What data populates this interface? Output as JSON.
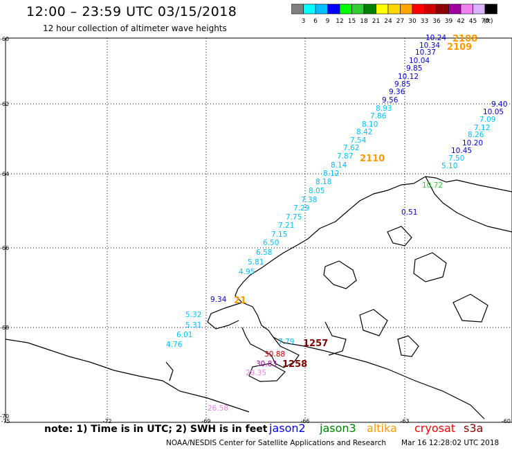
{
  "header": {
    "title": "12:00 – 23:59 UTC 03/15/2018",
    "subtitle": "12 hour collection of altimeter wave heights"
  },
  "colorbar": {
    "unit": "(ft)",
    "bins": [
      {
        "label": "3",
        "color": "#808080"
      },
      {
        "label": "6",
        "color": "#00ffff"
      },
      {
        "label": "9",
        "color": "#00bfff"
      },
      {
        "label": "12",
        "color": "#0000ff"
      },
      {
        "label": "15",
        "color": "#00ff00"
      },
      {
        "label": "18",
        "color": "#32cd32"
      },
      {
        "label": "21",
        "color": "#008000"
      },
      {
        "label": "24",
        "color": "#ffff00"
      },
      {
        "label": "27",
        "color": "#ffd700"
      },
      {
        "label": "30",
        "color": "#ffa500"
      },
      {
        "label": "33",
        "color": "#ff0000"
      },
      {
        "label": "36",
        "color": "#cc0000"
      },
      {
        "label": "39",
        "color": "#8b0000"
      },
      {
        "label": "42",
        "color": "#a000a0"
      },
      {
        "label": "45",
        "color": "#ee82ee"
      },
      {
        "label": "70",
        "color": "#d8b4fe"
      },
      {
        "label": "",
        "color": "#000000"
      }
    ]
  },
  "map": {
    "lat_labels": [
      "-60",
      "-62",
      "-64",
      "-66",
      "-68",
      "-70"
    ],
    "lon_labels": [
      "-75",
      "-72",
      "-69",
      "-66",
      "-63",
      "-60"
    ]
  },
  "observations": [
    {
      "text": "10.24",
      "color": "#0000cd"
    },
    {
      "text": "10.34",
      "color": "#0000cd"
    },
    {
      "text": "10.37",
      "color": "#0000cd"
    },
    {
      "text": "10.04",
      "color": "#0000cd"
    },
    {
      "text": "9.85",
      "color": "#0000cd"
    },
    {
      "text": "10.12",
      "color": "#0000cd"
    },
    {
      "text": "9.85",
      "color": "#0000cd"
    },
    {
      "text": "9.36",
      "color": "#0000cd"
    },
    {
      "text": "9.56",
      "color": "#0000cd"
    },
    {
      "text": "8.93",
      "color": "#00bfff"
    },
    {
      "text": "7.86",
      "color": "#00bfff"
    },
    {
      "text": "8.10",
      "color": "#00bfff"
    },
    {
      "text": "8.42",
      "color": "#00bfff"
    },
    {
      "text": "7.54",
      "color": "#00bfff"
    },
    {
      "text": "7.62",
      "color": "#00bfff"
    },
    {
      "text": "7.87",
      "color": "#00bfff"
    },
    {
      "text": "8.14",
      "color": "#00bfff"
    },
    {
      "text": "8.12",
      "color": "#00bfff"
    },
    {
      "text": "8.18",
      "color": "#00bfff"
    },
    {
      "text": "8.05",
      "color": "#00bfff"
    },
    {
      "text": "7.38",
      "color": "#00bfff"
    },
    {
      "text": "7.29",
      "color": "#00bfff"
    },
    {
      "text": "7.75",
      "color": "#00bfff"
    },
    {
      "text": "7.21",
      "color": "#00bfff"
    },
    {
      "text": "7.15",
      "color": "#00bfff"
    },
    {
      "text": "6.50",
      "color": "#00bfff"
    },
    {
      "text": "6.58",
      "color": "#00bfff"
    },
    {
      "text": "5.81",
      "color": "#00bfff"
    },
    {
      "text": "4.95",
      "color": "#00bfff"
    },
    {
      "text": "9.34",
      "color": "#0000cd"
    },
    {
      "text": "5.32",
      "color": "#00bfff"
    },
    {
      "text": "5.31",
      "color": "#00bfff"
    },
    {
      "text": "6.01",
      "color": "#00bfff"
    },
    {
      "text": "4.76",
      "color": "#00bfff"
    },
    {
      "text": "9.40",
      "color": "#0000cd"
    },
    {
      "text": "10.05",
      "color": "#0000cd"
    },
    {
      "text": "7.09",
      "color": "#00bfff"
    },
    {
      "text": "7.12",
      "color": "#00bfff"
    },
    {
      "text": "8.26",
      "color": "#00bfff"
    },
    {
      "text": "10.20",
      "color": "#0000cd"
    },
    {
      "text": "10.45",
      "color": "#0000cd"
    },
    {
      "text": "7.50",
      "color": "#00bfff"
    },
    {
      "text": "5.10",
      "color": "#00bfff"
    },
    {
      "text": "0.51",
      "color": "#0000cd"
    },
    {
      "text": "10.72",
      "color": "#32cd32"
    },
    {
      "text": "7.79",
      "color": "#00bfff"
    },
    {
      "text": "30.88",
      "color": "#cc0000"
    },
    {
      "text": "30.83",
      "color": "#a000a0"
    },
    {
      "text": "29.35",
      "color": "#ee82ee"
    },
    {
      "text": "26.58",
      "color": "#ee82ee"
    }
  ],
  "pass_times": [
    {
      "text": "2108",
      "color": "#ff9900"
    },
    {
      "text": "2109",
      "color": "#ff9900"
    },
    {
      "text": "2110",
      "color": "#ff9900"
    },
    {
      "text": "1257",
      "color": "#800000"
    },
    {
      "text": "1258",
      "color": "#800000"
    },
    {
      "text": "21",
      "color": "#ff9900"
    }
  ],
  "footer": {
    "note": "note: 1) Time is in UTC; 2) SWH is in feet",
    "satellites": [
      {
        "label": "jason2",
        "color": "#0000ff"
      },
      {
        "label": "jason3",
        "color": "#008000"
      },
      {
        "label": "altika",
        "color": "#ff9900"
      },
      {
        "label": "cryosat",
        "color": "#ff0000"
      },
      {
        "label": "s3a",
        "color": "#800000"
      }
    ],
    "credit": "NOAA/NESDIS Center for Satellite Applications and Research",
    "timestamp": "Mar 16 12:28:02 UTC 2018"
  }
}
